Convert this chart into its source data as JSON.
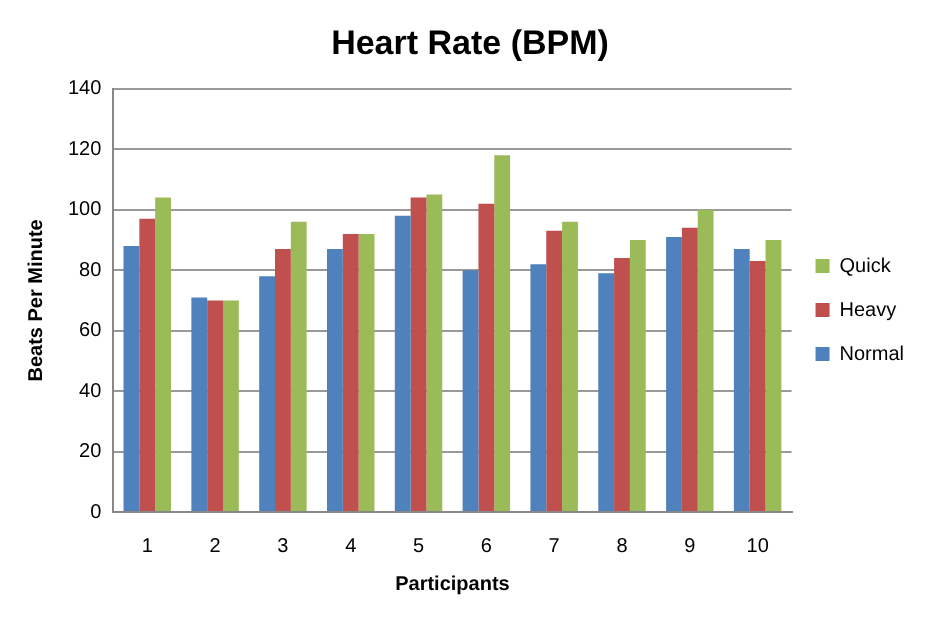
{
  "chart_data": {
    "type": "bar",
    "title": "Heart Rate (BPM)",
    "xlabel": "Participants",
    "ylabel": "Beats Per Minute",
    "categories": [
      "1",
      "2",
      "3",
      "4",
      "5",
      "6",
      "7",
      "8",
      "9",
      "10"
    ],
    "series": [
      {
        "name": "Normal",
        "color": "#4f81bd",
        "values": [
          88,
          71,
          78,
          87,
          98,
          80,
          82,
          79,
          91,
          87
        ]
      },
      {
        "name": "Heavy",
        "color": "#c0504d",
        "values": [
          97,
          70,
          87,
          92,
          104,
          102,
          93,
          84,
          94,
          83
        ]
      },
      {
        "name": "Quick",
        "color": "#9bbb59",
        "values": [
          104,
          70,
          96,
          92,
          105,
          118,
          96,
          90,
          100,
          90
        ]
      }
    ],
    "ylim": [
      0,
      140
    ],
    "yticks": [
      0,
      20,
      40,
      60,
      80,
      100,
      120,
      140
    ],
    "grid": "y",
    "legend": "right"
  }
}
